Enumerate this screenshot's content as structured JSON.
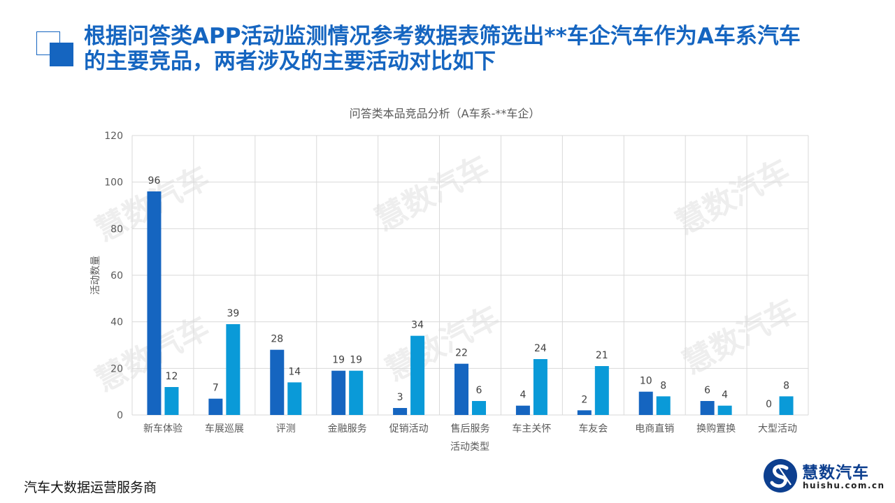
{
  "page": {
    "title_line1": "根据问答类APP活动监测情况参考数据表筛选出**车企汽车作为A车系汽车",
    "title_line2": "的主要竞品，两者涉及的主要活动对比如下",
    "footer": "汽车大数据运营服务商",
    "logo_name": "慧数汽车",
    "logo_url": "huishu.com.cn",
    "watermark": "慧数汽车"
  },
  "colors": {
    "series1": "#1565c0",
    "series2": "#0a9ad8",
    "title": "#1565c0",
    "grid": "#d9d9d9"
  },
  "chart_data": {
    "type": "bar",
    "title": "问答类本品竞品分析（A车系-**车企）",
    "xlabel": "活动类型",
    "ylabel": "活动数量",
    "ylim": [
      0,
      120
    ],
    "yticks": [
      0,
      20,
      40,
      60,
      80,
      100,
      120
    ],
    "grid": true,
    "legend": "none",
    "categories": [
      "新车体验",
      "车展巡展",
      "评测",
      "金融服务",
      "促销活动",
      "售后服务",
      "车主关怀",
      "车友会",
      "电商直销",
      "换购置换",
      "大型活动"
    ],
    "series": [
      {
        "values": [
          96,
          7,
          28,
          19,
          3,
          22,
          4,
          2,
          10,
          6,
          0
        ]
      },
      {
        "values": [
          12,
          39,
          14,
          19,
          34,
          6,
          24,
          21,
          8,
          4,
          8
        ]
      }
    ]
  }
}
